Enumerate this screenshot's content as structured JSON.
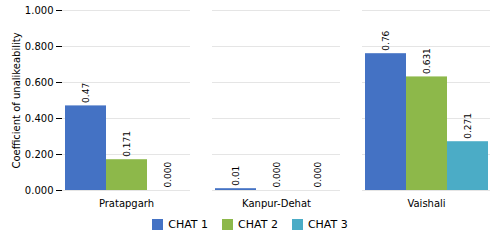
{
  "chart_data": {
    "type": "bar",
    "categories": [
      "Pratapgarh",
      "Kanpur-Dehat",
      "Vaishali"
    ],
    "series": [
      {
        "name": "CHAT 1",
        "color": "#4472C4",
        "values": [
          0.47,
          0.01,
          0.76
        ],
        "value_labels": [
          "0.47",
          "0.01",
          "0.76"
        ]
      },
      {
        "name": "CHAT 2",
        "color": "#8DB84A",
        "values": [
          0.171,
          0.0,
          0.631
        ],
        "value_labels": [
          "0.171",
          "0.000",
          "0.631"
        ]
      },
      {
        "name": "CHAT 3",
        "color": "#4BACC6",
        "values": [
          0.0,
          0.0,
          0.271
        ],
        "value_labels": [
          "0.000",
          "0.000",
          "0.271"
        ]
      }
    ],
    "ylabel": "Coefficient of unalikeability",
    "ylim": [
      0.0,
      1.0
    ],
    "yticks": [
      {
        "value": 0,
        "label": "0.000"
      },
      {
        "value": 0.2,
        "label": "0.200"
      },
      {
        "value": 0.4,
        "label": "0.400"
      },
      {
        "value": 0.6,
        "label": "0.600"
      },
      {
        "value": 0.8,
        "label": "0.800"
      },
      {
        "value": 1.0,
        "label": "1.000"
      }
    ],
    "grid": true,
    "data_labels": true,
    "legend": "bottom"
  }
}
